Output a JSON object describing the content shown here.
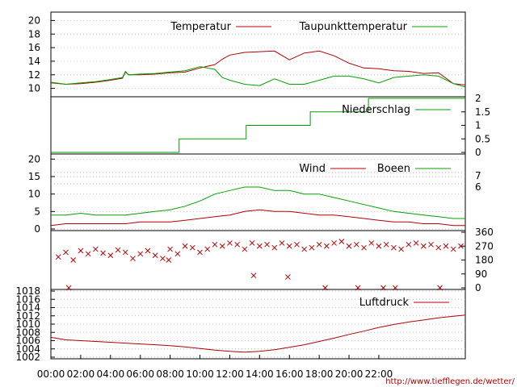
{
  "footer": {
    "source_url": "http://www.tiefflegen.de/wetter/"
  },
  "colors": {
    "red": "#b00000",
    "green": "#00a000",
    "frame": "#000000"
  },
  "chart_data": {
    "type": "line",
    "x_labels": [
      "00:00",
      "02:00",
      "04:00",
      "06:00",
      "08:00",
      "10:00",
      "12:00",
      "14:00",
      "16:00",
      "18:00",
      "20:00",
      "22:00"
    ],
    "x_range": [
      0,
      27.8
    ],
    "grid": true,
    "panels": [
      {
        "id": "temperature",
        "legend_position": "top",
        "ylim": [
          9,
          21
        ],
        "y_ticks": [
          10,
          12,
          14,
          16,
          18,
          20
        ],
        "series": [
          {
            "name": "Temperatur",
            "color": "#b00000",
            "x": [
              0,
              1,
              2,
              3,
              4,
              4.8,
              5,
              5.2,
              6,
              7,
              8,
              9,
              10,
              11,
              11.5,
              12,
              13,
              14,
              15,
              16,
              17,
              18,
              19,
              20,
              21,
              22,
              23,
              24,
              25,
              26,
              27,
              27.8
            ],
            "y": [
              10.8,
              10.6,
              10.7,
              10.9,
              11.2,
              11.5,
              12.4,
              12.0,
              12.0,
              12.1,
              12.3,
              12.4,
              13.0,
              13.5,
              14.3,
              14.9,
              15.3,
              15.4,
              15.5,
              14.2,
              15.2,
              15.5,
              14.8,
              13.7,
              13.0,
              12.9,
              12.6,
              12.5,
              12.2,
              12.3,
              10.7,
              10.5
            ]
          },
          {
            "name": "Taupunkttemperatur",
            "color": "#00a000",
            "x": [
              0,
              1,
              2,
              3,
              4,
              4.8,
              5,
              5.2,
              6,
              7,
              8,
              9,
              10,
              11,
              11.5,
              12,
              13,
              14,
              15,
              16,
              17,
              18,
              19,
              20,
              21,
              22,
              23,
              24,
              25,
              26,
              27,
              27.8
            ],
            "y": [
              10.9,
              10.6,
              10.8,
              11.0,
              11.3,
              11.6,
              12.5,
              12.0,
              12.1,
              12.2,
              12.4,
              12.6,
              13.2,
              12.8,
              11.6,
              11.2,
              10.6,
              10.4,
              11.4,
              10.6,
              10.6,
              11.2,
              11.8,
              11.8,
              11.4,
              10.8,
              11.6,
              11.8,
              12.0,
              11.8,
              10.7,
              10.2
            ]
          }
        ]
      },
      {
        "id": "precipitation",
        "legend_position": "top",
        "ylim": [
          0,
          2
        ],
        "y_ticks": [
          "0",
          "0.5",
          "1",
          "1.5",
          "2"
        ],
        "series": [
          {
            "name": "Niederschlag",
            "color": "#00a000",
            "step": true,
            "x": [
              0,
              8.6,
              8.6,
              13.1,
              13.1,
              17.4,
              17.4,
              21.3,
              21.3,
              27.8
            ],
            "y": [
              0,
              0,
              0.5,
              0.5,
              1.0,
              1.0,
              1.5,
              1.5,
              2.0,
              2.0
            ]
          }
        ]
      },
      {
        "id": "wind",
        "legend_position": "top",
        "ylim": [
          0,
          21
        ],
        "y_ticks": [
          0,
          5,
          10,
          15,
          20
        ],
        "right_labels": [
          "7",
          "6"
        ],
        "series": [
          {
            "name": "Wind",
            "color": "#b00000",
            "x": [
              0,
              1,
              2,
              3,
              4,
              5,
              6,
              7,
              8,
              9,
              10,
              11,
              12,
              13,
              14,
              15,
              16,
              17,
              18,
              19,
              20,
              21,
              22,
              23,
              24,
              25,
              26,
              27,
              27.8
            ],
            "y": [
              1,
              1.5,
              1.5,
              1.5,
              1.5,
              1.5,
              2,
              2,
              2,
              2.5,
              3,
              3.5,
              4,
              5,
              5.5,
              5,
              5,
              4.5,
              4,
              4,
              3.5,
              3,
              2.5,
              2,
              2,
              1.5,
              1.5,
              1,
              1
            ]
          },
          {
            "name": "Boeen",
            "color": "#00a000",
            "x": [
              0,
              1,
              2,
              3,
              4,
              5,
              6,
              7,
              8,
              9,
              10,
              11,
              12,
              13,
              14,
              15,
              16,
              17,
              18,
              19,
              20,
              21,
              22,
              23,
              24,
              25,
              26,
              27,
              27.8
            ],
            "y": [
              4,
              4,
              4.5,
              4,
              4,
              4,
              4.5,
              5,
              5.5,
              6.5,
              8,
              10,
              11,
              12,
              12,
              11,
              11,
              10,
              10,
              9,
              8,
              7,
              6,
              5,
              4.5,
              4,
              3.5,
              3,
              3
            ]
          }
        ]
      },
      {
        "id": "wind_direction",
        "ylim": [
          0,
          360
        ],
        "y_ticks": [
          "0",
          "90",
          "180",
          "270",
          "360"
        ],
        "series": [
          {
            "name": "",
            "color": "#b00000",
            "marker": "x",
            "x": [
              0.5,
              1,
              1.5,
              2,
              2.5,
              3,
              3.5,
              4,
              4.5,
              5,
              5.5,
              6,
              6.5,
              7,
              7.5,
              8,
              8.5,
              9,
              9.5,
              10,
              10.5,
              11,
              11.5,
              12,
              12.5,
              13,
              13.5,
              14,
              14.5,
              15,
              15.5,
              16,
              16.5,
              17,
              17.5,
              18,
              18.5,
              19,
              19.5,
              20,
              20.5,
              21,
              21.5,
              22,
              22.5,
              23,
              23.5,
              24,
              24.5,
              25,
              25.5,
              26,
              26.5,
              27,
              27.5,
              1.2,
              7.9,
              13.6,
              15.9,
              18.4,
              20.6,
              22.3,
              23.1,
              26.1
            ],
            "y": [
              200,
              230,
              180,
              240,
              220,
              250,
              225,
              210,
              245,
              230,
              190,
              220,
              240,
              210,
              190,
              250,
              220,
              270,
              260,
              230,
              250,
              280,
              270,
              290,
              280,
              250,
              290,
              270,
              280,
              260,
              290,
              270,
              280,
              250,
              260,
              280,
              270,
              290,
              300,
              270,
              280,
              260,
              290,
              270,
              280,
              260,
              250,
              280,
              290,
              270,
              280,
              260,
              270,
              250,
              270,
              0,
              180,
              80,
              70,
              0,
              0,
              0,
              0,
              0
            ]
          }
        ]
      },
      {
        "id": "pressure",
        "legend_position": "top",
        "ylim": [
          1002,
          1018
        ],
        "y_ticks": [
          1002,
          1004,
          1006,
          1008,
          1010,
          1012,
          1014,
          1016,
          1018
        ],
        "series": [
          {
            "name": "Luftdruck",
            "color": "#b00000",
            "x": [
              0,
              1,
              2,
              3,
              4,
              5,
              6,
              7,
              8,
              9,
              10,
              11,
              12,
              13,
              14,
              15,
              16,
              17,
              18,
              19,
              20,
              21,
              22,
              23,
              24,
              25,
              26,
              27,
              27.8
            ],
            "y": [
              1006.8,
              1006.2,
              1006.0,
              1005.8,
              1005.6,
              1005.4,
              1005.2,
              1005.0,
              1004.8,
              1004.5,
              1004.1,
              1003.7,
              1003.4,
              1003.2,
              1003.4,
              1003.8,
              1004.4,
              1005.0,
              1005.8,
              1006.6,
              1007.5,
              1008.3,
              1009.2,
              1009.9,
              1010.5,
              1011.0,
              1011.5,
              1011.9,
              1012.2
            ]
          }
        ]
      }
    ]
  }
}
